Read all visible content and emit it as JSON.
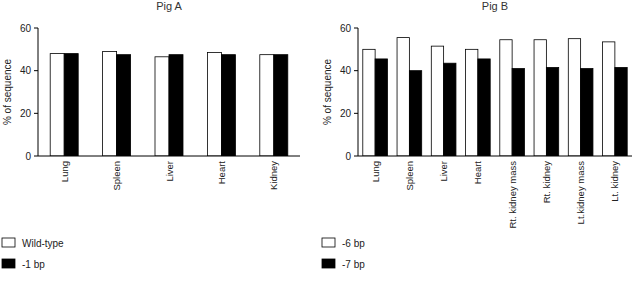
{
  "chart_data": [
    {
      "type": "bar",
      "title": "Pig A",
      "y_label": "% of sequence",
      "categories": [
        "Lung",
        "Spleen",
        "Liver",
        "Heart",
        "Kidney"
      ],
      "series": [
        {
          "name": "Wild-type",
          "color": "#ffffff",
          "values": [
            48,
            49,
            46.5,
            48.5,
            47.5
          ]
        },
        {
          "name": "-1 bp",
          "color": "#000000",
          "values": [
            48,
            47.5,
            47.5,
            47.5,
            47.5
          ]
        }
      ],
      "ylim": [
        0,
        60
      ],
      "yticks": [
        0,
        20,
        40,
        60
      ],
      "grid": false,
      "legend": "bottom"
    },
    {
      "type": "bar",
      "title": "Pig B",
      "y_label": "% of sequence",
      "categories": [
        "Lung",
        "Spleen",
        "Liver",
        "Heart",
        "Rt. kidney mass",
        "Rt. kidney",
        "Lt.kidney mass",
        "Lt. kidney"
      ],
      "series": [
        {
          "name": "-6 bp",
          "color": "#ffffff",
          "values": [
            50,
            55.5,
            51.5,
            50,
            54.5,
            54.5,
            55,
            53.5
          ]
        },
        {
          "name": "-7 bp",
          "color": "#000000",
          "values": [
            45.5,
            40,
            43.5,
            45.5,
            41,
            41.5,
            41,
            41.5
          ]
        }
      ],
      "ylim": [
        0,
        60
      ],
      "yticks": [
        0,
        20,
        40,
        60
      ],
      "grid": false,
      "legend": "bottom"
    }
  ]
}
